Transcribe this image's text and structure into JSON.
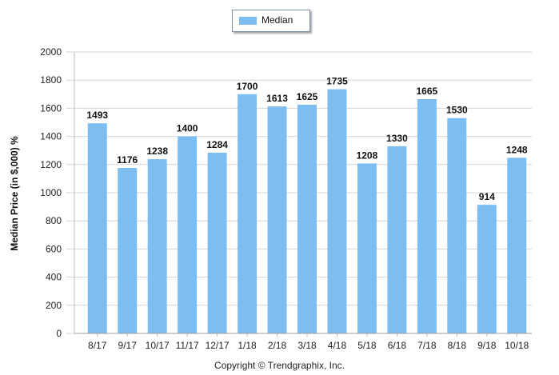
{
  "chart_data": {
    "type": "bar",
    "categories": [
      "8/17",
      "9/17",
      "10/17",
      "11/17",
      "12/17",
      "1/18",
      "2/18",
      "3/18",
      "4/18",
      "5/18",
      "6/18",
      "7/18",
      "8/18",
      "9/18",
      "10/18"
    ],
    "series": [
      {
        "name": "Median",
        "values": [
          1493,
          1176,
          1238,
          1400,
          1284,
          1700,
          1613,
          1625,
          1735,
          1208,
          1330,
          1665,
          1530,
          914,
          1248
        ]
      }
    ],
    "ylabel": "Median Price (in $,000) %",
    "xlabel": "",
    "ylim": [
      0,
      2000
    ],
    "yticks": [
      0,
      200,
      400,
      600,
      800,
      1000,
      1200,
      1400,
      1600,
      1800,
      2000
    ],
    "grid": true,
    "legend_position": "top-center",
    "bar_color": "#7cbef2"
  },
  "footer": {
    "copyright": "Copyright © Trendgraphix, Inc."
  }
}
